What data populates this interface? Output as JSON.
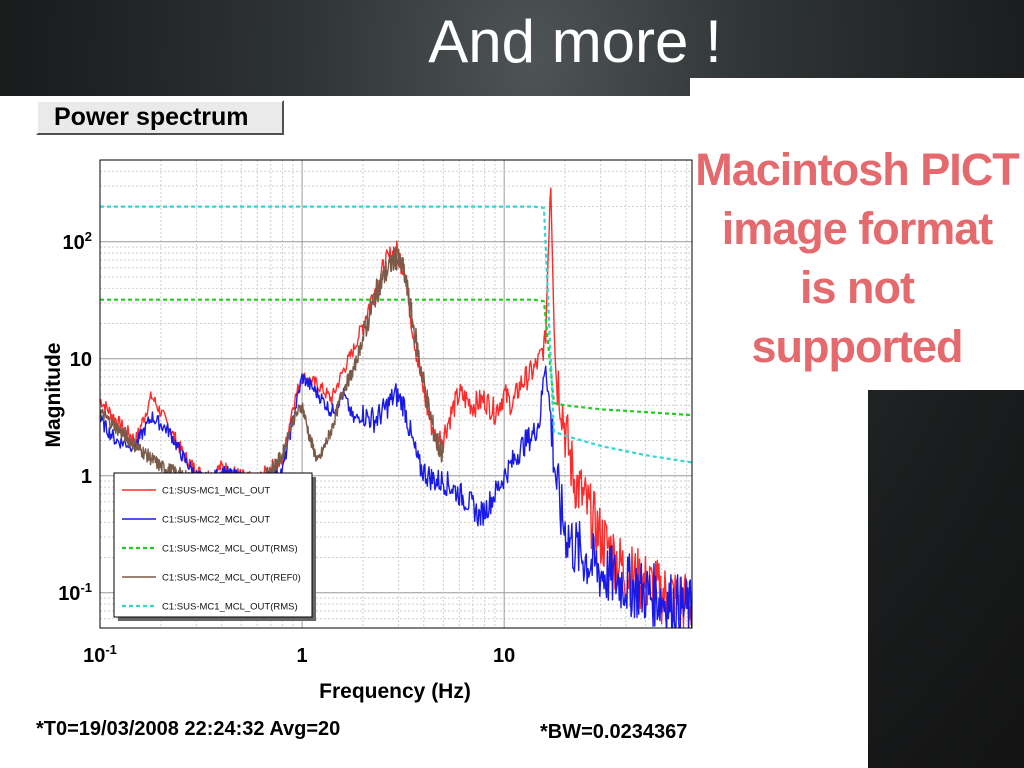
{
  "slide": {
    "title": "And more !"
  },
  "panel": {
    "tab_label": "Power spectrum"
  },
  "placeholder": {
    "message_lines": [
      "Macintosh PICT",
      "image format",
      "is not supported"
    ]
  },
  "footer": {
    "left": "*T0=19/03/2008 22:24:32  Avg=20",
    "right": "*BW=0.0234367"
  },
  "colors": {
    "background": "#1f2324",
    "placeholder_text": "#e46a6d",
    "axis_text": "#000000"
  },
  "chart_data": {
    "type": "line",
    "title": "",
    "xlabel": "Frequency (Hz)",
    "ylabel": "Magnitude",
    "xscale": "log",
    "yscale": "log",
    "xlim": [
      0.1,
      85
    ],
    "ylim": [
      0.05,
      500
    ],
    "grid": true,
    "legend_position": "bottom-left",
    "x_tick_labels": [
      {
        "value": 0.1,
        "base": "10",
        "exp": "-1"
      },
      {
        "value": 1,
        "base": "1",
        "exp": ""
      },
      {
        "value": 10,
        "base": "10",
        "exp": ""
      }
    ],
    "y_tick_labels": [
      {
        "value": 0.1,
        "base": "10",
        "exp": "-1"
      },
      {
        "value": 1,
        "base": "1",
        "exp": ""
      },
      {
        "value": 10,
        "base": "10",
        "exp": ""
      },
      {
        "value": 100,
        "base": "10",
        "exp": "2"
      }
    ],
    "series": [
      {
        "name": "C1:SUS-MC1_MCL_OUT",
        "color": "#ff2a2a",
        "style": "solid",
        "x": [
          0.1,
          0.12,
          0.15,
          0.18,
          0.22,
          0.26,
          0.3,
          0.35,
          0.4,
          0.5,
          0.6,
          0.7,
          0.8,
          0.9,
          1.0,
          1.2,
          1.4,
          1.6,
          1.8,
          2.0,
          2.3,
          2.6,
          2.9,
          3.2,
          3.5,
          3.8,
          4.2,
          4.6,
          5.0,
          5.5,
          6.0,
          7.0,
          8.0,
          9.0,
          10,
          11,
          12,
          13,
          14,
          15,
          16,
          17,
          18,
          19,
          20,
          22,
          25,
          30,
          40,
          50,
          60,
          70,
          85
        ],
        "y": [
          4.5,
          3.0,
          2.0,
          4.8,
          2.6,
          1.5,
          1.1,
          1.0,
          1.2,
          1.0,
          0.9,
          1.2,
          1.3,
          4.0,
          7.0,
          6.0,
          4.5,
          8.0,
          12.0,
          20.0,
          40.0,
          65.0,
          85.0,
          60.0,
          20.0,
          8.0,
          3.5,
          2.0,
          2.2,
          3.5,
          5.0,
          4.0,
          4.5,
          3.5,
          5.0,
          4.0,
          6.0,
          7.0,
          8.0,
          10.0,
          14.0,
          400.0,
          8.0,
          5.0,
          2.5,
          1.0,
          0.6,
          0.3,
          0.15,
          0.12,
          0.1,
          0.09,
          0.08
        ]
      },
      {
        "name": "C1:SUS-MC2_MCL_OUT",
        "color": "#1a1ae6",
        "style": "solid",
        "x": [
          0.1,
          0.12,
          0.15,
          0.18,
          0.22,
          0.26,
          0.3,
          0.35,
          0.4,
          0.5,
          0.6,
          0.7,
          0.8,
          0.9,
          1.0,
          1.2,
          1.4,
          1.6,
          1.8,
          2.0,
          2.3,
          2.6,
          2.9,
          3.2,
          3.5,
          3.8,
          4.2,
          4.6,
          5.0,
          5.5,
          6.0,
          7.0,
          7.5,
          8.0,
          9.0,
          10,
          11,
          12,
          13,
          14,
          15,
          16,
          17,
          18,
          19,
          20,
          22,
          25,
          30,
          40,
          50,
          60,
          70,
          85
        ],
        "y": [
          3.0,
          2.0,
          1.8,
          3.2,
          2.4,
          1.4,
          1.0,
          0.9,
          1.1,
          0.95,
          0.85,
          1.0,
          1.1,
          3.0,
          7.0,
          5.0,
          3.5,
          5.0,
          3.0,
          3.3,
          3.0,
          3.8,
          5.0,
          4.0,
          2.0,
          1.2,
          1.0,
          0.9,
          0.9,
          0.8,
          0.7,
          0.55,
          0.45,
          0.5,
          0.7,
          1.0,
          1.3,
          1.7,
          2.0,
          2.3,
          3.0,
          10.0,
          3.0,
          1.0,
          0.5,
          0.35,
          0.25,
          0.2,
          0.15,
          0.12,
          0.1,
          0.09,
          0.08,
          0.07
        ]
      },
      {
        "name": "C1:SUS-MC2_MCL_OUT(RMS)",
        "color": "#22cc22",
        "style": "dashed",
        "x": [
          0.1,
          1,
          10,
          15,
          16.5,
          17.5,
          20,
          30,
          50,
          85
        ],
        "y": [
          32,
          32,
          32,
          32,
          30,
          4.2,
          4.0,
          3.7,
          3.5,
          3.3
        ]
      },
      {
        "name": "C1:SUS-MC2_MCL_OUT(REF0)",
        "color": "#7a5a48",
        "style": "solid",
        "x": [
          0.1,
          0.15,
          0.2,
          0.3,
          0.4,
          0.6,
          0.8,
          0.9,
          1.0,
          1.1,
          1.2,
          1.4,
          1.6,
          1.8,
          2.0,
          2.3,
          2.6,
          2.9,
          3.2,
          3.5,
          3.8,
          4.2,
          4.6,
          5.0
        ],
        "y": [
          3.5,
          1.8,
          1.2,
          0.9,
          0.7,
          0.8,
          1.5,
          3.0,
          4.0,
          2.0,
          1.3,
          2.5,
          5.5,
          8.0,
          15.0,
          35.0,
          55.0,
          75.0,
          55.0,
          22.0,
          10.0,
          4.0,
          2.0,
          1.5
        ]
      },
      {
        "name": "C1:SUS-MC1_MCL_OUT(RMS)",
        "color": "#33d6d6",
        "style": "dashed",
        "x": [
          0.1,
          1,
          10,
          15,
          16.5,
          17.5,
          20,
          30,
          50,
          85
        ],
        "y": [
          200,
          200,
          200,
          200,
          190,
          2.4,
          2.2,
          1.8,
          1.5,
          1.3
        ]
      }
    ]
  }
}
